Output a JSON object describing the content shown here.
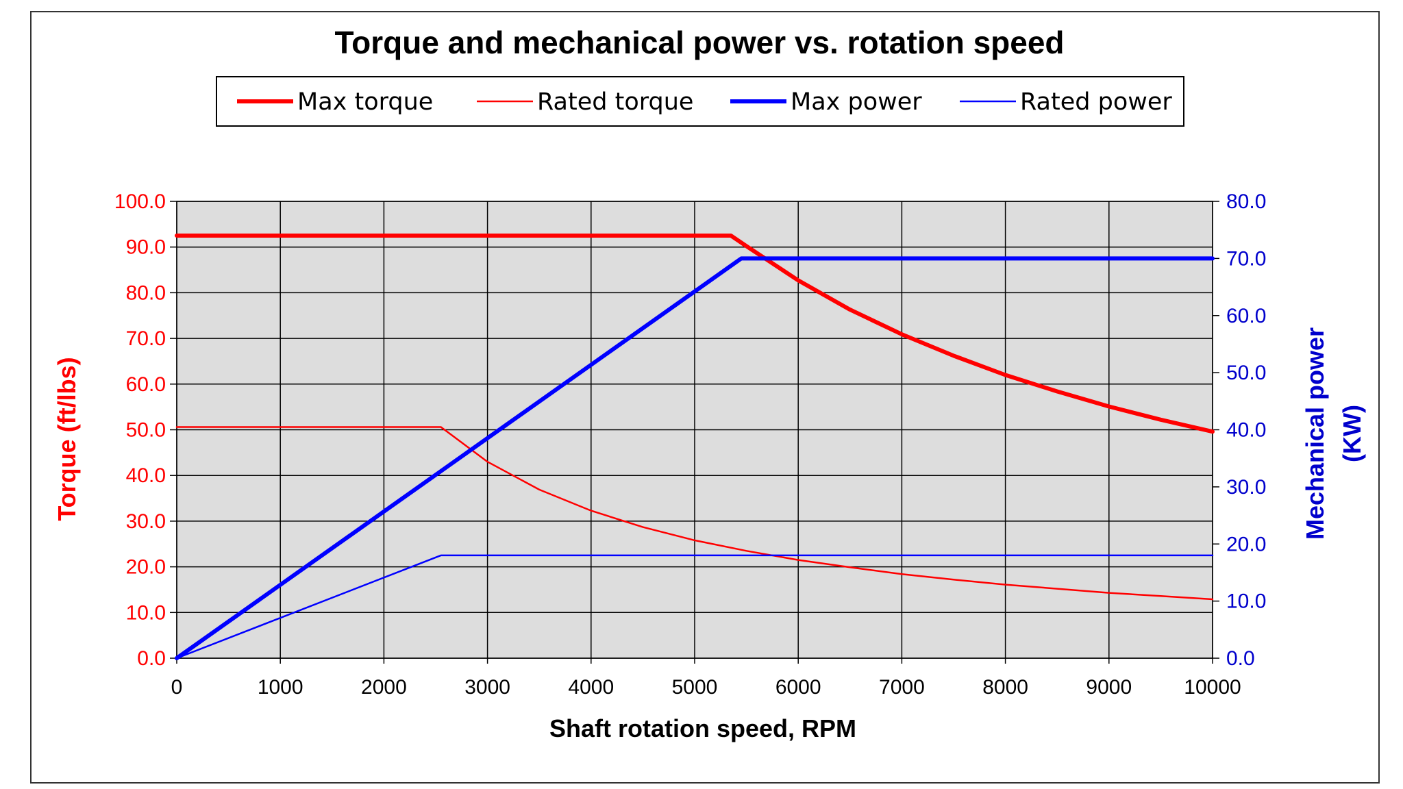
{
  "chart_data": {
    "type": "line",
    "title": "Torque and mechanical power vs. rotation speed",
    "xlabel": "Shaft rotation speed, RPM",
    "ylabel_left": "Torque (ft/lbs)",
    "ylabel_right_lines": [
      "Mechanical power",
      "(KW)"
    ],
    "xlim": [
      0,
      10000
    ],
    "ylim_left": [
      0,
      100
    ],
    "ylim_right": [
      0,
      80
    ],
    "x_ticks": [
      "0",
      "1000",
      "2000",
      "3000",
      "4000",
      "5000",
      "6000",
      "7000",
      "8000",
      "9000",
      "10000"
    ],
    "y_left_ticks": [
      "0.0",
      "10.0",
      "20.0",
      "30.0",
      "40.0",
      "50.0",
      "60.0",
      "70.0",
      "80.0",
      "90.0",
      "100.0"
    ],
    "y_right_ticks": [
      "0.0",
      "10.0",
      "20.0",
      "30.0",
      "40.0",
      "50.0",
      "60.0",
      "70.0",
      "80.0"
    ],
    "grid": true,
    "legend_position": "top",
    "series": [
      {
        "name": "Max torque",
        "axis": "left",
        "color": "#ff0000",
        "weight": "thick",
        "x": [
          0,
          5350,
          5500,
          6000,
          6500,
          7000,
          7500,
          8000,
          8500,
          9000,
          9500,
          10000
        ],
        "y": [
          92.5,
          92.5,
          90.2,
          82.7,
          76.3,
          70.9,
          66.2,
          62.0,
          58.4,
          55.1,
          52.2,
          49.6
        ]
      },
      {
        "name": "Rated torque",
        "axis": "left",
        "color": "#ff0000",
        "weight": "thin",
        "x": [
          0,
          2550,
          3000,
          3500,
          4000,
          4500,
          5000,
          5500,
          6000,
          6500,
          7000,
          7500,
          8000,
          8500,
          9000,
          9500,
          10000
        ],
        "y": [
          50.6,
          50.6,
          43.0,
          36.9,
          32.3,
          28.7,
          25.8,
          23.5,
          21.5,
          19.9,
          18.4,
          17.2,
          16.1,
          15.2,
          14.3,
          13.6,
          12.9
        ]
      },
      {
        "name": "Max power",
        "axis": "right",
        "color": "#0000ff",
        "weight": "thick",
        "x": [
          0,
          5450,
          10000
        ],
        "y": [
          0,
          70,
          70
        ]
      },
      {
        "name": "Rated power",
        "axis": "right",
        "color": "#0000ff",
        "weight": "thin",
        "x": [
          0,
          2550,
          10000
        ],
        "y": [
          0,
          18,
          18
        ]
      }
    ]
  }
}
